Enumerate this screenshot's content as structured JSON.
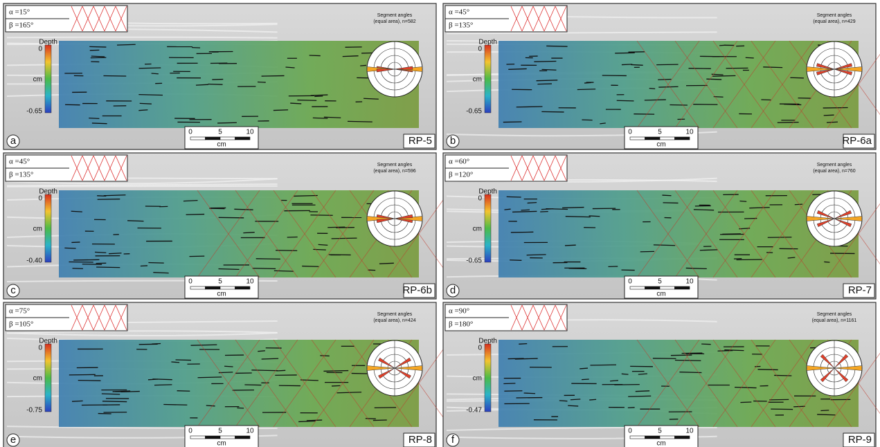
{
  "depth_legend": {
    "title": "Depth",
    "max": "0",
    "unit": "cm"
  },
  "scale_bar": {
    "ticks": [
      "0",
      "5",
      "10"
    ],
    "unit": "cm"
  },
  "rose_title": "Segment angles",
  "panels": [
    {
      "letter": "a",
      "label": "RP-5",
      "alpha": "α =15°",
      "beta": "β =165°",
      "depth_min": "-0.65",
      "rose_subtitle": "(equal area), n=582"
    },
    {
      "letter": "b",
      "label": "RP-6a",
      "alpha": "α =45°",
      "beta": "β =135°",
      "depth_min": "-0.65",
      "rose_subtitle": "(equal area), n=429"
    },
    {
      "letter": "c",
      "label": "RP-6b",
      "alpha": "α =45°",
      "beta": "β =135°",
      "depth_min": "-0.40",
      "rose_subtitle": "(equal area), n=596"
    },
    {
      "letter": "d",
      "label": "RP-7",
      "alpha": "α =60°",
      "beta": "β =120°",
      "depth_min": "-0.65",
      "rose_subtitle": "(equal area), n=760"
    },
    {
      "letter": "e",
      "label": "RP-8",
      "alpha": "α =75°",
      "beta": "β =105°",
      "depth_min": "-0.75",
      "rose_subtitle": "(equal area), n=424"
    },
    {
      "letter": "f",
      "label": "RP-9",
      "alpha": "α =90°",
      "beta": "β =180°",
      "depth_min": "-0.47",
      "rose_subtitle": "(equal area), n=1161"
    }
  ]
}
